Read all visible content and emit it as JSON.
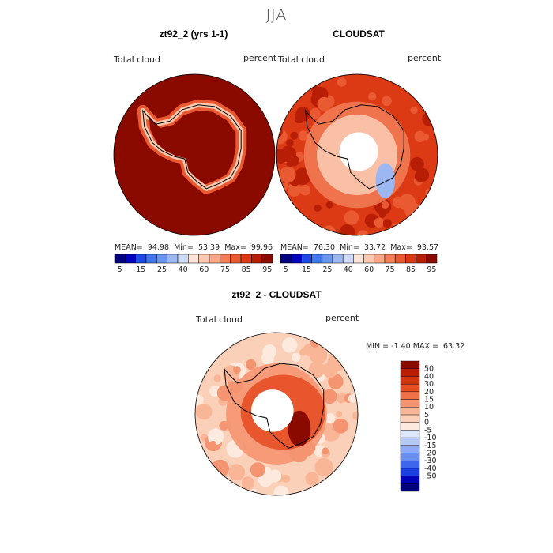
{
  "season_title": "JJA",
  "colors": {
    "land_outline": "#000000",
    "pole_hole": "#ffffff",
    "abs_scale": [
      "#00007f",
      "#0000bf",
      "#2046e6",
      "#4477ee",
      "#6a96f0",
      "#9cb7f2",
      "#cfdcf7",
      "#fde5d8",
      "#fbc9b0",
      "#f8a886",
      "#f27f58",
      "#ea5a32",
      "#dc3a14",
      "#b81e06",
      "#8b0a00"
    ],
    "diff_scale": [
      "#00007f",
      "#0000b7",
      "#1c3fe0",
      "#3e66ec",
      "#6a8ff0",
      "#8eaaf2",
      "#b4c9f6",
      "#dfe8fb",
      "#fde9de",
      "#fbd0b8",
      "#f9b696",
      "#f59470",
      "#ef7148",
      "#e54f25",
      "#d23610",
      "#b81e06",
      "#8b0a00"
    ]
  },
  "chart_data": [
    {
      "type": "heatmap",
      "title": "zt92_2 (yrs 1-1)",
      "field_label": "Total cloud",
      "units_label": "percent",
      "projection": "south-polar-stereographic",
      "stats": {
        "mean": "94.98",
        "min": "53.39",
        "max": "99.96"
      },
      "stats_labels": {
        "mean": "MEAN=",
        "min": "Min=",
        "max": "Max="
      },
      "colorbar": {
        "orientation": "horizontal",
        "bins": 15,
        "tick_labels": [
          "5",
          "15",
          "25",
          "40",
          "60",
          "75",
          "85",
          "95"
        ],
        "tick_after_bin": [
          0,
          2,
          4,
          6,
          8,
          10,
          12,
          14
        ]
      },
      "field": {
        "ocean": 95,
        "coast": 82,
        "interior": 95,
        "description": "near-uniform high cloud fraction over ocean and interior, lower near coast"
      }
    },
    {
      "type": "heatmap",
      "title": "CLOUDSAT",
      "field_label": "Total cloud",
      "units_label": "percent",
      "projection": "south-polar-stereographic",
      "stats": {
        "mean": "76.30",
        "min": "33.72",
        "max": "93.57"
      },
      "stats_labels": {
        "mean": "MEAN=",
        "min": "Min=",
        "max": "Max="
      },
      "colorbar": {
        "orientation": "horizontal",
        "bins": 15,
        "tick_labels": [
          "5",
          "15",
          "25",
          "40",
          "60",
          "75",
          "85",
          "95"
        ],
        "tick_after_bin": [
          0,
          2,
          4,
          6,
          8,
          10,
          12,
          14
        ]
      },
      "field": {
        "outer_ocean": 85,
        "mid_ocean": 78,
        "coast": 65,
        "interior": 55,
        "west_antarctic_min": 35
      }
    },
    {
      "type": "heatmap",
      "title": "zt92_2 - CLOUDSAT",
      "field_label": "Total cloud",
      "units_label": "percent",
      "projection": "south-polar-stereographic",
      "stats": {
        "min": "-1.40",
        "max": "63.32"
      },
      "stats_labels": {
        "min": "MIN =",
        "max": "MAX ="
      },
      "colorbar": {
        "orientation": "vertical",
        "bins": 17,
        "tick_labels": [
          "50",
          "40",
          "30",
          "20",
          "15",
          "10",
          "5",
          "0",
          "-5",
          "-10",
          "-15",
          "-20",
          "-30",
          "-40",
          "-50"
        ]
      },
      "field": {
        "outer_ocean": 10,
        "mid_ocean": 20,
        "interior": 40,
        "west_antarctic_max": 55
      }
    }
  ]
}
